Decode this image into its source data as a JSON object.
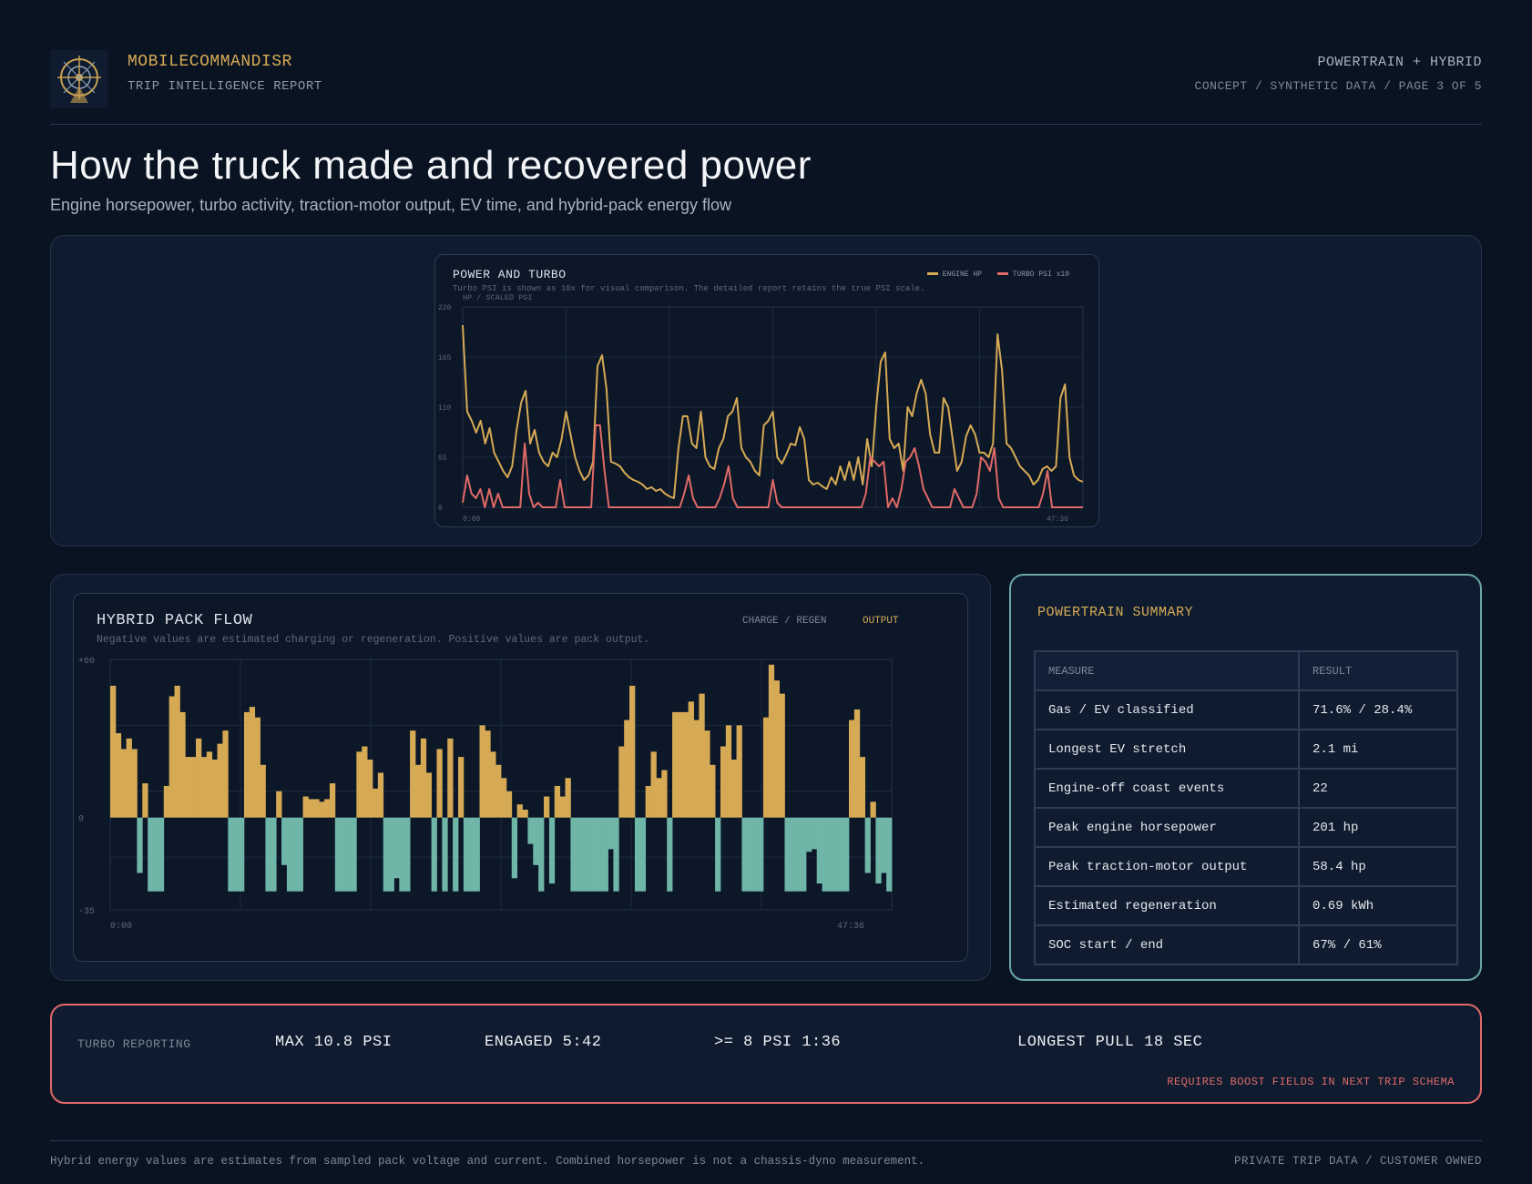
{
  "header": {
    "brand": "MOBILECOMMANDISR",
    "brand_sub": "TRIP INTELLIGENCE REPORT",
    "section": "POWERTRAIN + HYBRID",
    "page_info": "CONCEPT / SYNTHETIC DATA / PAGE 3 OF 5"
  },
  "page": {
    "title": "How the truck made and recovered power",
    "subtitle": "Engine horsepower, turbo activity, traction-motor output, EV time, and hybrid-pack energy flow"
  },
  "power_chart": {
    "title": "POWER AND TURBO",
    "note": "Turbo PSI is shown as 10x for visual comparison. The detailed report retains the true PSI scale.",
    "legend_engine": "ENGINE HP",
    "legend_turbo": "TURBO PSI x10"
  },
  "hybrid_chart": {
    "title": "HYBRID PACK FLOW",
    "note": "Negative values are estimated charging or regeneration. Positive values are pack output.",
    "legend_charge": "CHARGE / REGEN",
    "legend_output": "OUTPUT"
  },
  "chart_data": [
    {
      "type": "line",
      "ylabel": "HP / SCALED PSI",
      "ylim": [
        0,
        220
      ],
      "y_ticks": [
        "220",
        "165",
        "110",
        "55",
        "0"
      ],
      "x_tick_labels": [
        "0:00",
        "47:36"
      ],
      "grid": true,
      "legend": "top-right",
      "series": [
        {
          "name": "ENGINE HP",
          "color": "#d6aa55",
          "values": [
            200,
            105,
            95,
            82,
            95,
            70,
            87,
            60,
            50,
            40,
            33,
            45,
            85,
            115,
            128,
            70,
            85,
            60,
            50,
            45,
            60,
            55,
            75,
            105,
            80,
            55,
            40,
            30,
            35,
            50,
            155,
            167,
            130,
            50,
            48,
            45,
            38,
            33,
            30,
            28,
            25,
            20,
            22,
            18,
            20,
            15,
            12,
            10,
            65,
            100,
            100,
            70,
            65,
            105,
            55,
            45,
            42,
            65,
            75,
            100,
            105,
            120,
            65,
            55,
            50,
            40,
            35,
            90,
            95,
            105,
            55,
            48,
            58,
            70,
            68,
            88,
            75,
            30,
            25,
            27,
            23,
            20,
            33,
            25,
            45,
            30,
            50,
            30,
            55,
            25,
            75,
            45,
            110,
            160,
            170,
            75,
            65,
            70,
            40,
            110,
            100,
            125,
            140,
            125,
            80,
            60,
            60,
            120,
            110,
            75,
            40,
            50,
            78,
            90,
            80,
            60,
            60,
            55,
            70,
            190,
            150,
            70,
            65,
            55,
            45,
            40,
            35,
            25,
            30,
            42,
            45,
            40,
            45,
            120,
            135,
            55,
            35,
            30,
            28
          ]
        },
        {
          "name": "TURBO PSI x10",
          "color": "#e06a67",
          "values": [
            5,
            35,
            15,
            10,
            20,
            0,
            20,
            0,
            15,
            0,
            0,
            0,
            0,
            0,
            70,
            15,
            0,
            5,
            0,
            0,
            0,
            0,
            30,
            0,
            0,
            0,
            0,
            0,
            0,
            0,
            90,
            90,
            40,
            0,
            0,
            0,
            0,
            0,
            0,
            0,
            0,
            0,
            0,
            0,
            0,
            0,
            0,
            0,
            0,
            0,
            15,
            35,
            10,
            0,
            0,
            0,
            0,
            0,
            10,
            25,
            45,
            10,
            0,
            0,
            0,
            0,
            0,
            0,
            0,
            0,
            30,
            5,
            0,
            0,
            0,
            0,
            0,
            0,
            0,
            0,
            0,
            0,
            0,
            0,
            0,
            0,
            0,
            0,
            0,
            0,
            0,
            15,
            55,
            50,
            45,
            50,
            0,
            10,
            0,
            20,
            50,
            55,
            65,
            45,
            20,
            10,
            0,
            0,
            0,
            0,
            0,
            20,
            10,
            0,
            0,
            0,
            15,
            55,
            50,
            40,
            65,
            10,
            0,
            0,
            0,
            0,
            0,
            0,
            0,
            0,
            0,
            15,
            40,
            0,
            0,
            0,
            0,
            0,
            0,
            0,
            0
          ]
        }
      ]
    },
    {
      "type": "bar",
      "ylim": [
        -35,
        60
      ],
      "y_ticks": [
        "+60",
        "0",
        "-35"
      ],
      "x_tick_labels": [
        "0:00",
        "47:36"
      ],
      "grid": true,
      "series": [
        {
          "name": "OUTPUT",
          "color": "#d6aa55"
        },
        {
          "name": "CHARGE / REGEN",
          "color": "#6fb5a8"
        }
      ],
      "values": [
        50,
        32,
        26,
        30,
        26,
        -21,
        13,
        -28,
        -28,
        -28,
        12,
        46,
        50,
        40,
        23,
        23,
        30,
        23,
        25,
        22,
        28,
        33,
        -28,
        -28,
        -28,
        40,
        42,
        38,
        20,
        -28,
        -28,
        10,
        -18,
        -28,
        -28,
        -28,
        8,
        7,
        7,
        6,
        7,
        13,
        -28,
        -28,
        -28,
        -28,
        25,
        27,
        22,
        11,
        17,
        -28,
        -28,
        -23,
        -28,
        -28,
        33,
        20,
        30,
        17,
        -28,
        26,
        -28,
        30,
        -28,
        23,
        -28,
        -28,
        -28,
        35,
        33,
        25,
        20,
        15,
        10,
        -23,
        5,
        3,
        -10,
        -18,
        -28,
        8,
        -25,
        12,
        8,
        15,
        -28,
        -28,
        -28,
        -28,
        -28,
        -28,
        -28,
        -12,
        -28,
        27,
        37,
        50,
        -28,
        -28,
        12,
        25,
        15,
        18,
        -28,
        40,
        40,
        40,
        44,
        37,
        47,
        33,
        20,
        -28,
        27,
        35,
        22,
        35,
        -28,
        -28,
        -28,
        -28,
        38,
        58,
        52,
        47,
        -28,
        -28,
        -28,
        -28,
        -13,
        -12,
        -25,
        -28,
        -28,
        -28,
        -28,
        -28,
        37,
        41,
        23,
        -21,
        6,
        -25,
        -21,
        -28
      ]
    }
  ],
  "summary": {
    "title": "POWERTRAIN SUMMARY",
    "col_measure": "MEASURE",
    "col_result": "RESULT",
    "rows": [
      {
        "measure": "Gas / EV classified",
        "result": "71.6% / 28.4%"
      },
      {
        "measure": "Longest EV stretch",
        "result": "2.1 mi"
      },
      {
        "measure": "Engine-off coast events",
        "result": "22"
      },
      {
        "measure": "Peak engine horsepower",
        "result": "201 hp"
      },
      {
        "measure": "Peak traction-motor output",
        "result": "58.4 hp"
      },
      {
        "measure": "Estimated regeneration",
        "result": "0.69 kWh"
      },
      {
        "measure": "SOC start / end",
        "result": "67% / 61%"
      }
    ]
  },
  "turbo": {
    "label": "TURBO REPORTING",
    "max": "MAX 10.8 PSI",
    "engaged": "ENGAGED 5:42",
    "over8": ">= 8 PSI 1:36",
    "longest": "LONGEST PULL 18 SEC",
    "requirement": "REQUIRES BOOST FIELDS IN NEXT TRIP SCHEMA"
  },
  "footer": {
    "disclaimer": "Hybrid energy values are estimates from sampled pack voltage and current. Combined horsepower is not a chassis-dyno measurement.",
    "ownership": "PRIVATE TRIP DATA / CUSTOMER OWNED"
  },
  "colors": {
    "background": "#0a1322",
    "panel": "#0f1c30",
    "accent_gold": "#d6aa55",
    "accent_red": "#e06a67",
    "accent_teal": "#6fb5a8"
  },
  "icons": {
    "logo": "ship-wheel-logo-icon"
  }
}
